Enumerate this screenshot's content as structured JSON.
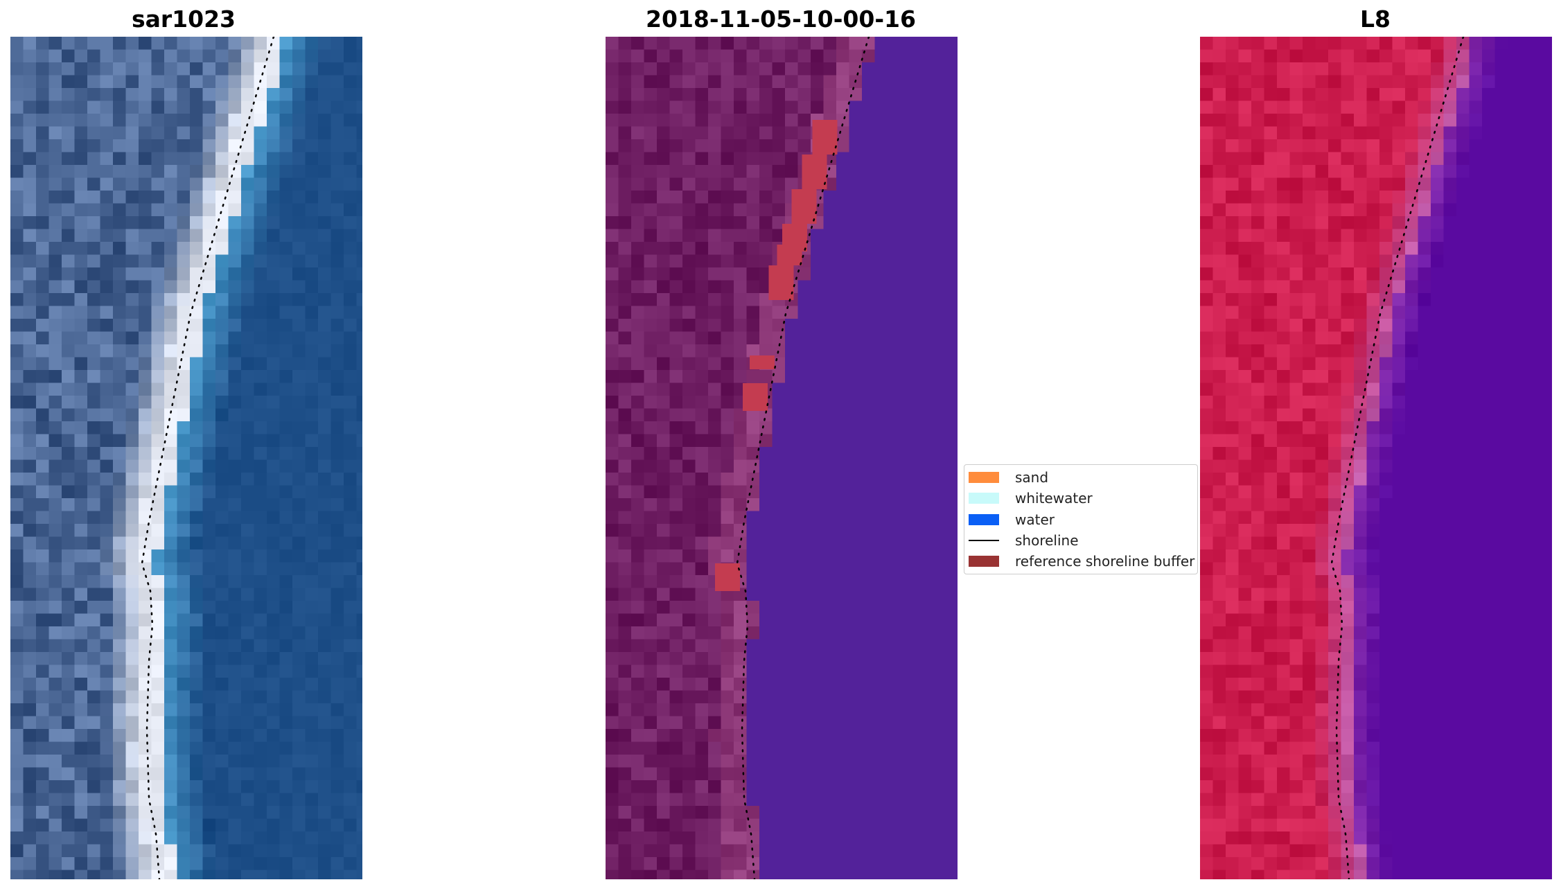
{
  "panels": [
    {
      "title": "sar1023",
      "theme": "rgb"
    },
    {
      "title": "2018-11-05-10-00-16",
      "theme": "classified"
    },
    {
      "title": "L8",
      "theme": "ndwi"
    }
  ],
  "legend": {
    "items": [
      {
        "label": "sand",
        "color": "#ff8c3c",
        "kind": "patch"
      },
      {
        "label": "whitewater",
        "color": "#c8fafa",
        "kind": "patch"
      },
      {
        "label": "water",
        "color": "#0a5ff5",
        "kind": "patch"
      },
      {
        "label": "shoreline",
        "color": "#000000",
        "kind": "line"
      },
      {
        "label": "reference shoreline buffer",
        "color": "#993333",
        "kind": "patch"
      }
    ]
  },
  "colors": {
    "rgb_land": "#4a6694",
    "rgb_sand": "#e4e8f2",
    "rgb_water": "#1e4f88",
    "class_land": "#6e1e62",
    "class_water": "#53229a",
    "class_buffer": "#c43c50",
    "ndwi_land": "#cc1d4e",
    "ndwi_water": "#5a0aa0",
    "shoreline": "#000000"
  }
}
